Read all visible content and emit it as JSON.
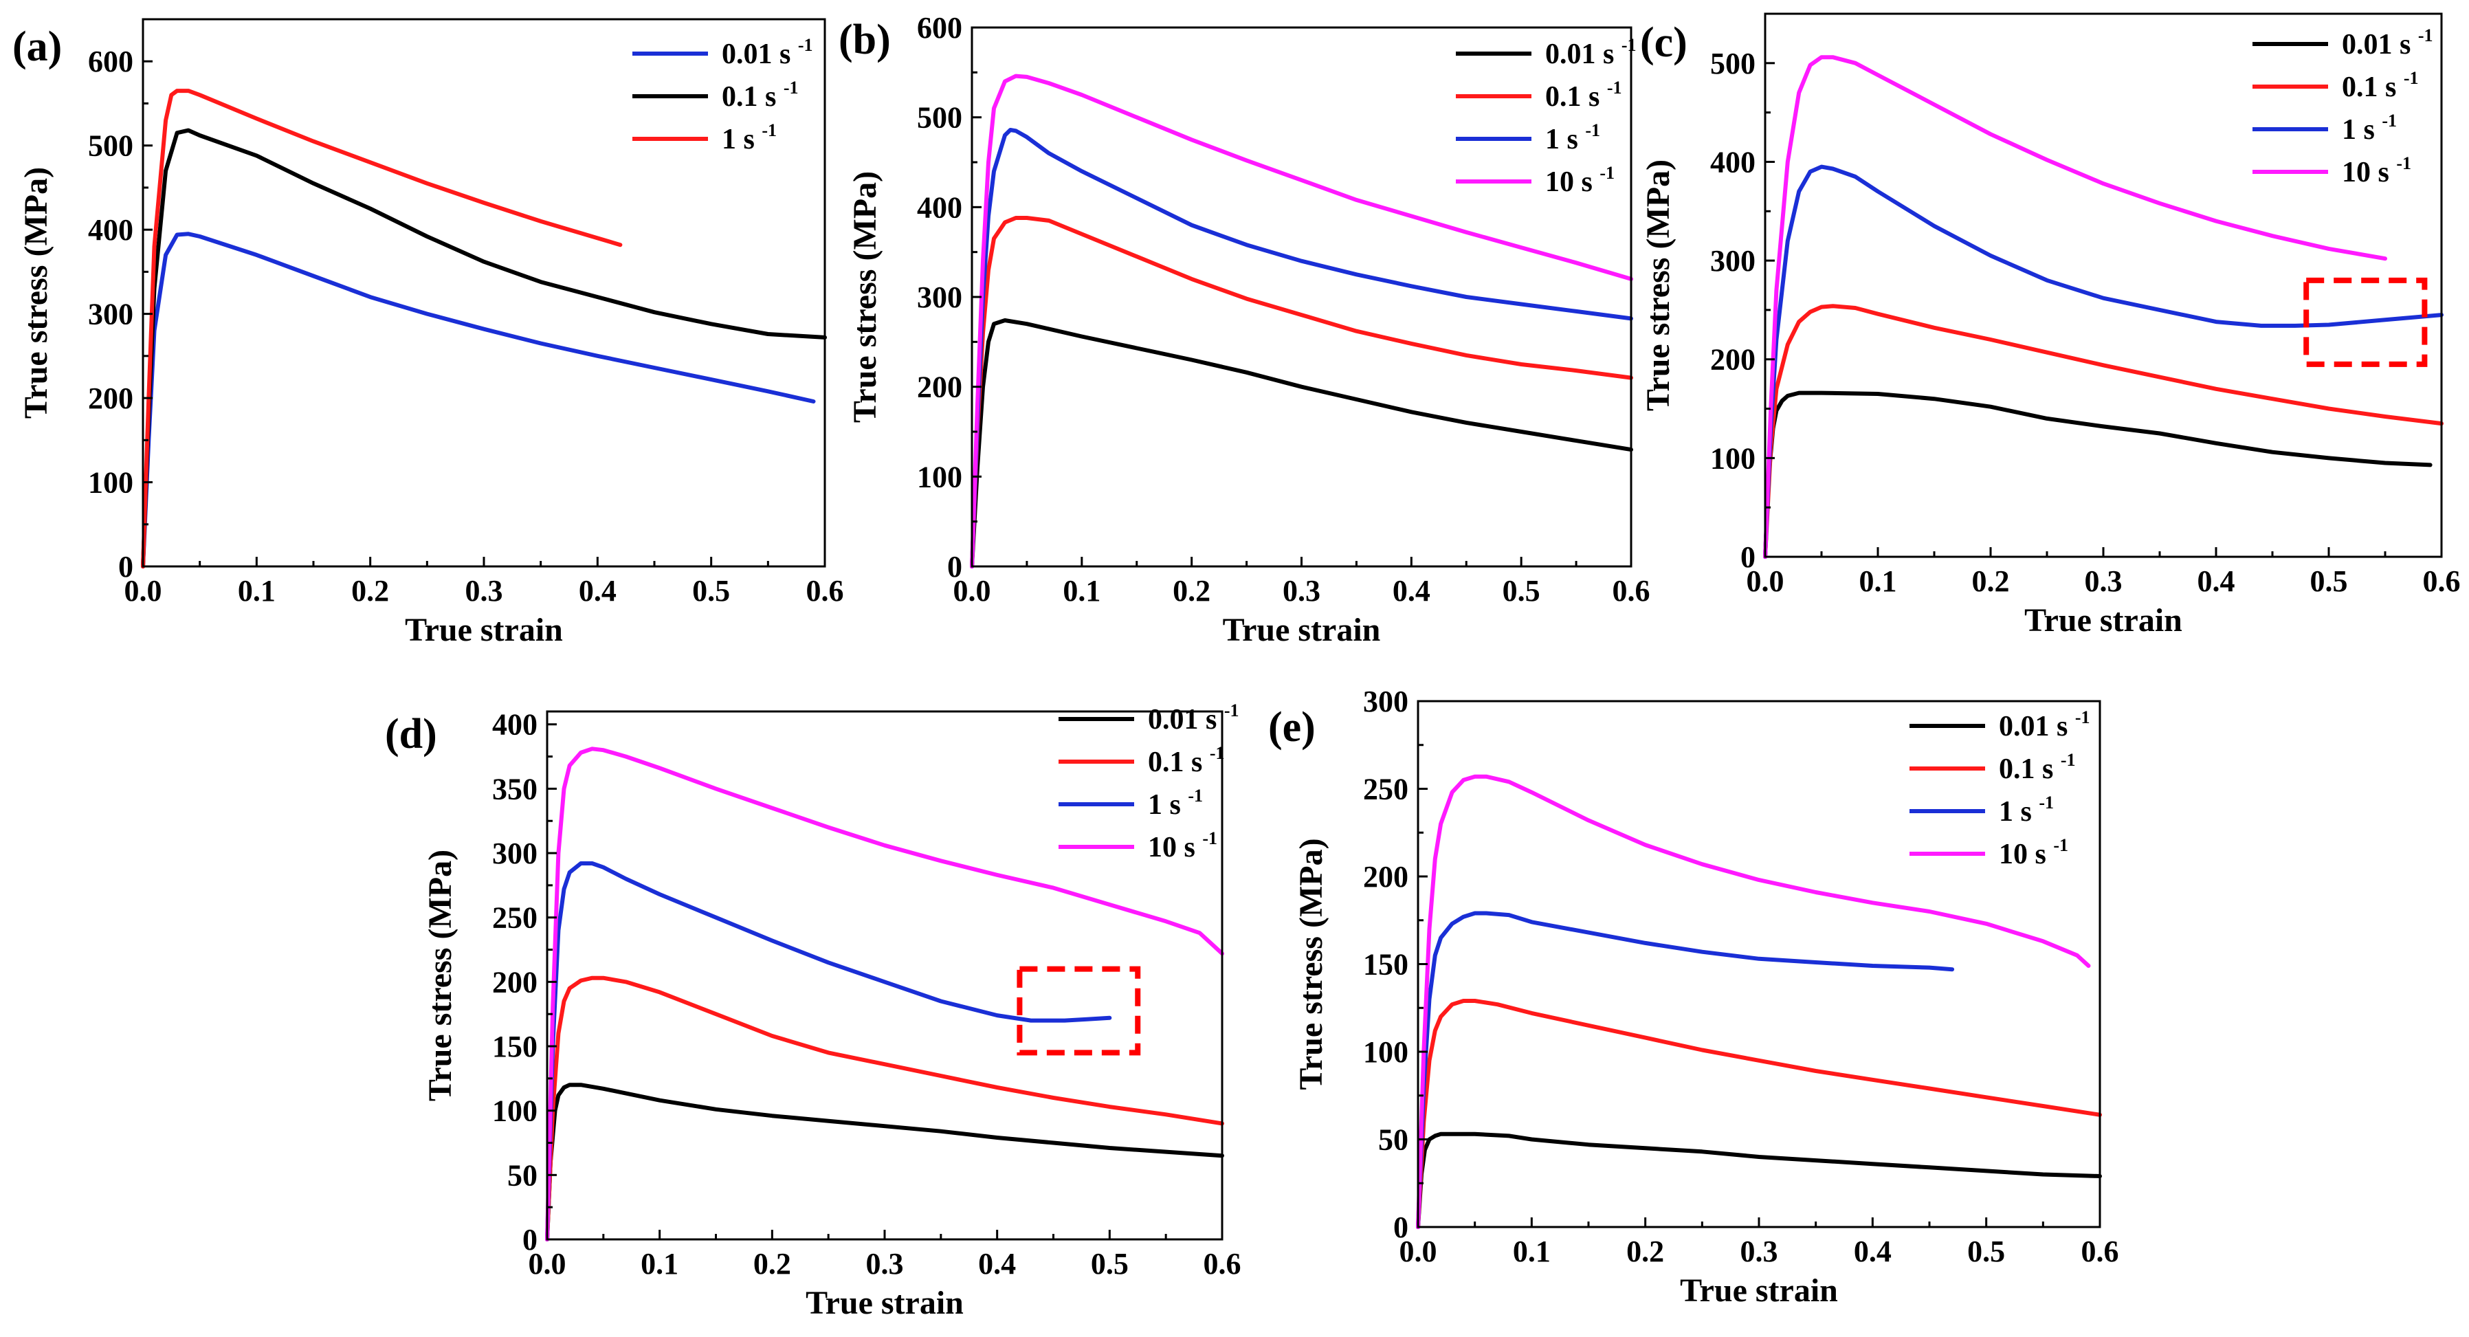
{
  "figure": {
    "colors": {
      "black": "#000000",
      "red": "#ff1a1a",
      "blue": "#1a2fd6",
      "magenta": "#ff1aff",
      "highlight": "#ff0000"
    }
  },
  "chart_data": [
    {
      "type": "line",
      "panel_label": "(a)",
      "xlabel": "True strain",
      "ylabel": "True stress (MPa)",
      "xlim": [
        0,
        0.6
      ],
      "ylim": [
        0,
        650
      ],
      "xticks": [
        "0.0",
        "0.1",
        "0.2",
        "0.3",
        "0.4",
        "0.5",
        "0.6"
      ],
      "yticks": [
        "0",
        "100",
        "200",
        "300",
        "400",
        "500",
        "600"
      ],
      "legend_position": "top-right",
      "series": [
        {
          "name": "0.01 s",
          "sup": "-1",
          "color": "#1a2fd6",
          "x": [
            0,
            0.005,
            0.01,
            0.02,
            0.03,
            0.04,
            0.05,
            0.1,
            0.15,
            0.2,
            0.25,
            0.3,
            0.35,
            0.4,
            0.45,
            0.5,
            0.55,
            0.59
          ],
          "y": [
            0,
            150,
            280,
            370,
            394,
            395,
            392,
            370,
            345,
            320,
            300,
            282,
            265,
            250,
            236,
            222,
            208,
            196
          ]
        },
        {
          "name": "0.1 s",
          "sup": "-1",
          "color": "#000000",
          "x": [
            0,
            0.005,
            0.01,
            0.02,
            0.03,
            0.04,
            0.05,
            0.1,
            0.15,
            0.2,
            0.25,
            0.3,
            0.35,
            0.4,
            0.45,
            0.5,
            0.55,
            0.6
          ],
          "y": [
            0,
            180,
            330,
            470,
            515,
            518,
            512,
            488,
            455,
            425,
            392,
            362,
            338,
            320,
            302,
            288,
            276,
            272
          ]
        },
        {
          "name": "1 s",
          "sup": "-1",
          "color": "#ff1a1a",
          "x": [
            0,
            0.005,
            0.01,
            0.02,
            0.025,
            0.03,
            0.04,
            0.05,
            0.1,
            0.15,
            0.2,
            0.25,
            0.3,
            0.35,
            0.4,
            0.42
          ],
          "y": [
            0,
            200,
            380,
            530,
            560,
            565,
            565,
            560,
            532,
            505,
            480,
            455,
            432,
            410,
            390,
            382
          ]
        }
      ],
      "highlight_box": null
    },
    {
      "type": "line",
      "panel_label": "(b)",
      "xlabel": "True strain",
      "ylabel": "True stress (MPa)",
      "xlim": [
        0,
        0.6
      ],
      "ylim": [
        0,
        600
      ],
      "xticks": [
        "0.0",
        "0.1",
        "0.2",
        "0.3",
        "0.4",
        "0.5",
        "0.6"
      ],
      "yticks": [
        "0",
        "100",
        "200",
        "300",
        "400",
        "500",
        "600"
      ],
      "legend_position": "top-right",
      "series": [
        {
          "name": "0.01 s",
          "sup": "-1",
          "color": "#000000",
          "x": [
            0,
            0.005,
            0.01,
            0.015,
            0.02,
            0.03,
            0.05,
            0.1,
            0.15,
            0.2,
            0.25,
            0.3,
            0.35,
            0.4,
            0.45,
            0.5,
            0.55,
            0.6
          ],
          "y": [
            0,
            110,
            200,
            250,
            270,
            274,
            270,
            256,
            243,
            230,
            216,
            200,
            186,
            172,
            160,
            150,
            140,
            130
          ]
        },
        {
          "name": "0.1 s",
          "sup": "-1",
          "color": "#ff1a1a",
          "x": [
            0,
            0.005,
            0.01,
            0.015,
            0.02,
            0.03,
            0.04,
            0.05,
            0.07,
            0.1,
            0.15,
            0.2,
            0.25,
            0.3,
            0.35,
            0.4,
            0.45,
            0.5,
            0.55,
            0.6
          ],
          "y": [
            0,
            150,
            260,
            330,
            365,
            383,
            388,
            388,
            385,
            370,
            345,
            320,
            298,
            280,
            262,
            248,
            235,
            225,
            218,
            210
          ]
        },
        {
          "name": "1 s",
          "sup": "-1",
          "color": "#1a2fd6",
          "x": [
            0,
            0.005,
            0.01,
            0.015,
            0.02,
            0.03,
            0.035,
            0.04,
            0.05,
            0.07,
            0.1,
            0.15,
            0.2,
            0.25,
            0.3,
            0.35,
            0.4,
            0.45,
            0.5,
            0.55,
            0.6
          ],
          "y": [
            0,
            160,
            300,
            390,
            440,
            480,
            486,
            485,
            478,
            460,
            440,
            410,
            380,
            358,
            340,
            325,
            312,
            300,
            292,
            284,
            276
          ]
        },
        {
          "name": "10 s",
          "sup": "-1",
          "color": "#ff1aff",
          "x": [
            0,
            0.005,
            0.01,
            0.015,
            0.02,
            0.03,
            0.04,
            0.05,
            0.07,
            0.1,
            0.15,
            0.2,
            0.25,
            0.3,
            0.35,
            0.4,
            0.45,
            0.5,
            0.55,
            0.6
          ],
          "y": [
            0,
            180,
            340,
            450,
            510,
            540,
            546,
            545,
            538,
            525,
            500,
            475,
            452,
            430,
            408,
            390,
            372,
            355,
            338,
            320
          ]
        }
      ],
      "highlight_box": null
    },
    {
      "type": "line",
      "panel_label": "(c)",
      "xlabel": "True strain",
      "ylabel": "True stress (MPa)",
      "xlim": [
        0,
        0.6
      ],
      "ylim": [
        0,
        550
      ],
      "xticks": [
        "0.0",
        "0.1",
        "0.2",
        "0.3",
        "0.4",
        "0.5",
        "0.6"
      ],
      "yticks": [
        "0",
        "100",
        "200",
        "300",
        "400",
        "500"
      ],
      "legend_position": "top-right",
      "series": [
        {
          "name": "0.01 s",
          "sup": "-1",
          "color": "#000000",
          "x": [
            0,
            0.003,
            0.007,
            0.01,
            0.015,
            0.02,
            0.03,
            0.05,
            0.1,
            0.15,
            0.2,
            0.25,
            0.3,
            0.35,
            0.4,
            0.45,
            0.5,
            0.55,
            0.59
          ],
          "y": [
            0,
            80,
            130,
            148,
            158,
            163,
            166,
            166,
            165,
            160,
            152,
            140,
            132,
            125,
            115,
            106,
            100,
            95,
            93
          ]
        },
        {
          "name": "0.1 s",
          "sup": "-1",
          "color": "#ff1a1a",
          "x": [
            0,
            0.005,
            0.01,
            0.02,
            0.03,
            0.04,
            0.05,
            0.06,
            0.08,
            0.1,
            0.15,
            0.2,
            0.25,
            0.3,
            0.35,
            0.4,
            0.45,
            0.5,
            0.55,
            0.6
          ],
          "y": [
            0,
            110,
            170,
            215,
            238,
            248,
            253,
            254,
            252,
            246,
            232,
            220,
            207,
            194,
            182,
            170,
            160,
            150,
            142,
            135
          ]
        },
        {
          "name": "1 s",
          "sup": "-1",
          "color": "#1a2fd6",
          "x": [
            0,
            0.005,
            0.01,
            0.02,
            0.03,
            0.04,
            0.05,
            0.06,
            0.08,
            0.1,
            0.15,
            0.2,
            0.25,
            0.3,
            0.35,
            0.4,
            0.44,
            0.47,
            0.5,
            0.55,
            0.6
          ],
          "y": [
            0,
            130,
            220,
            320,
            370,
            390,
            395,
            393,
            385,
            370,
            335,
            305,
            280,
            262,
            250,
            238,
            234,
            234,
            235,
            240,
            245
          ]
        },
        {
          "name": "10 s",
          "sup": "-1",
          "color": "#ff1aff",
          "x": [
            0,
            0.005,
            0.01,
            0.02,
            0.03,
            0.04,
            0.05,
            0.06,
            0.08,
            0.1,
            0.15,
            0.2,
            0.25,
            0.3,
            0.35,
            0.4,
            0.45,
            0.5,
            0.55
          ],
          "y": [
            0,
            150,
            270,
            400,
            470,
            498,
            506,
            506,
            500,
            488,
            458,
            428,
            402,
            378,
            358,
            340,
            325,
            312,
            302
          ]
        }
      ],
      "highlight_box": {
        "x": [
          0.48,
          0.585
        ],
        "y": [
          195,
          280
        ]
      }
    },
    {
      "type": "line",
      "panel_label": "(d)",
      "xlabel": "True strain",
      "ylabel": "True stress (MPa)",
      "xlim": [
        0,
        0.6
      ],
      "ylim": [
        0,
        410
      ],
      "xticks": [
        "0.0",
        "0.1",
        "0.2",
        "0.3",
        "0.4",
        "0.5",
        "0.6"
      ],
      "yticks": [
        "0",
        "50",
        "100",
        "150",
        "200",
        "250",
        "300",
        "350",
        "400"
      ],
      "legend_position": "top-right",
      "series": [
        {
          "name": "0.01 s",
          "sup": "-1",
          "color": "#000000",
          "x": [
            0,
            0.003,
            0.007,
            0.01,
            0.015,
            0.02,
            0.03,
            0.05,
            0.1,
            0.15,
            0.2,
            0.25,
            0.3,
            0.35,
            0.4,
            0.45,
            0.5,
            0.55,
            0.6
          ],
          "y": [
            0,
            60,
            100,
            112,
            118,
            120,
            120,
            117,
            108,
            101,
            96,
            92,
            88,
            84,
            79,
            75,
            71,
            68,
            65
          ]
        },
        {
          "name": "0.1 s",
          "sup": "-1",
          "color": "#ff1a1a",
          "x": [
            0,
            0.005,
            0.01,
            0.015,
            0.02,
            0.03,
            0.04,
            0.05,
            0.07,
            0.1,
            0.15,
            0.2,
            0.25,
            0.3,
            0.35,
            0.4,
            0.45,
            0.5,
            0.55,
            0.6
          ],
          "y": [
            0,
            100,
            160,
            185,
            195,
            201,
            203,
            203,
            200,
            192,
            175,
            158,
            145,
            136,
            127,
            118,
            110,
            103,
            97,
            90
          ]
        },
        {
          "name": "1 s",
          "sup": "-1",
          "color": "#1a2fd6",
          "x": [
            0,
            0.005,
            0.01,
            0.015,
            0.02,
            0.03,
            0.04,
            0.05,
            0.07,
            0.1,
            0.15,
            0.2,
            0.25,
            0.3,
            0.35,
            0.4,
            0.43,
            0.46,
            0.48,
            0.5
          ],
          "y": [
            0,
            150,
            240,
            272,
            285,
            292,
            292,
            289,
            280,
            268,
            250,
            232,
            215,
            200,
            185,
            174,
            170,
            170,
            171,
            172
          ]
        },
        {
          "name": "10 s",
          "sup": "-1",
          "color": "#ff1aff",
          "x": [
            0,
            0.005,
            0.01,
            0.015,
            0.02,
            0.03,
            0.04,
            0.05,
            0.07,
            0.1,
            0.15,
            0.2,
            0.25,
            0.3,
            0.35,
            0.4,
            0.45,
            0.5,
            0.55,
            0.58,
            0.6
          ],
          "y": [
            0,
            180,
            300,
            350,
            368,
            378,
            381,
            380,
            375,
            366,
            350,
            335,
            320,
            306,
            294,
            283,
            273,
            260,
            247,
            238,
            222
          ]
        }
      ],
      "highlight_box": {
        "x": [
          0.42,
          0.525
        ],
        "y": [
          145,
          210
        ]
      }
    },
    {
      "type": "line",
      "panel_label": "(e)",
      "xlabel": "True strain",
      "ylabel": "True stress (MPa)",
      "xlim": [
        0,
        0.6
      ],
      "ylim": [
        0,
        300
      ],
      "xticks": [
        "0.0",
        "0.1",
        "0.2",
        "0.3",
        "0.4",
        "0.5",
        "0.6"
      ],
      "yticks": [
        "0",
        "50",
        "100",
        "150",
        "200",
        "250",
        "300"
      ],
      "legend_position": "top-right",
      "series": [
        {
          "name": "0.01 s",
          "sup": "-1",
          "color": "#000000",
          "x": [
            0,
            0.003,
            0.006,
            0.01,
            0.015,
            0.02,
            0.03,
            0.05,
            0.08,
            0.1,
            0.15,
            0.2,
            0.25,
            0.3,
            0.35,
            0.4,
            0.45,
            0.5,
            0.55,
            0.6
          ],
          "y": [
            0,
            30,
            44,
            50,
            52,
            53,
            53,
            53,
            52,
            50,
            47,
            45,
            43,
            40,
            38,
            36,
            34,
            32,
            30,
            29
          ]
        },
        {
          "name": "0.1 s",
          "sup": "-1",
          "color": "#ff1a1a",
          "x": [
            0,
            0.005,
            0.01,
            0.015,
            0.02,
            0.03,
            0.04,
            0.05,
            0.07,
            0.1,
            0.15,
            0.2,
            0.25,
            0.3,
            0.35,
            0.4,
            0.45,
            0.5,
            0.55,
            0.6
          ],
          "y": [
            0,
            60,
            95,
            112,
            120,
            127,
            129,
            129,
            127,
            122,
            115,
            108,
            101,
            95,
            89,
            84,
            79,
            74,
            69,
            64
          ]
        },
        {
          "name": "1 s",
          "sup": "-1",
          "color": "#1a2fd6",
          "x": [
            0,
            0.005,
            0.01,
            0.015,
            0.02,
            0.03,
            0.04,
            0.05,
            0.06,
            0.08,
            0.1,
            0.15,
            0.2,
            0.25,
            0.3,
            0.35,
            0.4,
            0.45,
            0.47
          ],
          "y": [
            0,
            80,
            130,
            155,
            165,
            173,
            177,
            179,
            179,
            178,
            174,
            168,
            162,
            157,
            153,
            151,
            149,
            148,
            147
          ]
        },
        {
          "name": "10 s",
          "sup": "-1",
          "color": "#ff1aff",
          "x": [
            0,
            0.005,
            0.01,
            0.015,
            0.02,
            0.03,
            0.04,
            0.05,
            0.06,
            0.08,
            0.1,
            0.15,
            0.2,
            0.25,
            0.3,
            0.35,
            0.4,
            0.45,
            0.5,
            0.55,
            0.58,
            0.59
          ],
          "y": [
            0,
            100,
            170,
            210,
            230,
            248,
            255,
            257,
            257,
            254,
            248,
            232,
            218,
            207,
            198,
            191,
            185,
            180,
            173,
            163,
            155,
            149
          ]
        }
      ],
      "highlight_box": null
    }
  ]
}
